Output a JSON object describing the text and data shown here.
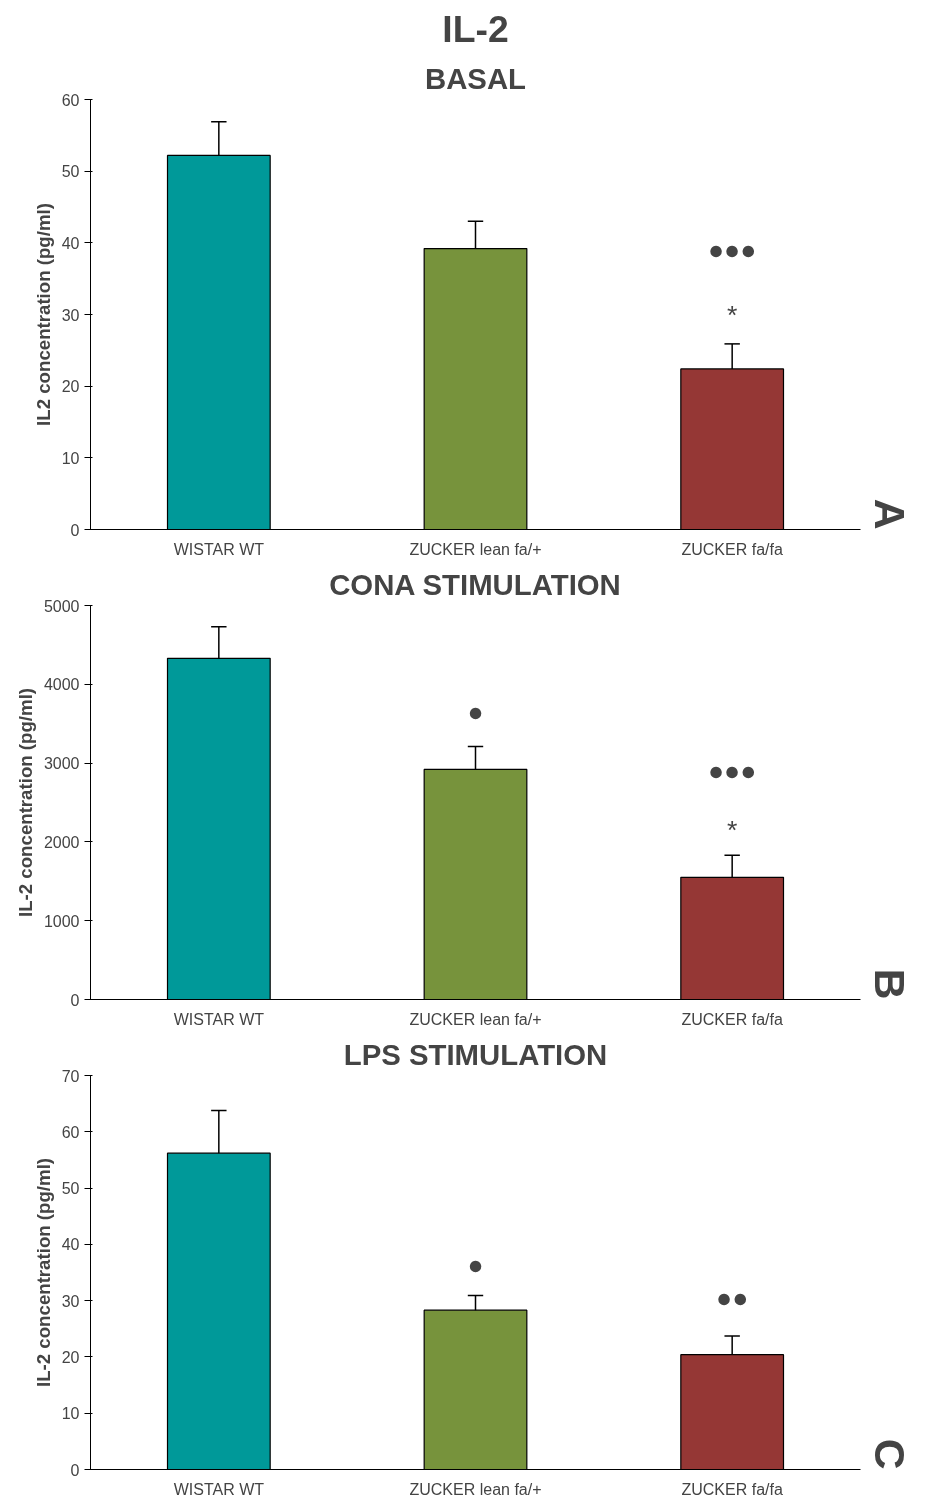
{
  "chart_data": [
    {
      "type": "bar",
      "title": "IL-2",
      "subtitle": "BASAL",
      "ylabel": "IL2 concentration (pg/ml)",
      "categories": [
        "WISTAR WT",
        "ZUCKER lean fa/+",
        "ZUCKER fa/fa"
      ],
      "values": [
        52.2,
        39.2,
        22.4
      ],
      "colors": [
        "#009999",
        "#77933c",
        "#953735"
      ],
      "errors": [
        [
          52.2,
          56.9
        ],
        [
          39.2,
          43
        ],
        [
          22.4,
          25.9
        ]
      ],
      "ylim": [
        0,
        60
      ],
      "yticks": [
        0,
        10,
        20,
        30,
        40,
        50,
        60
      ],
      "grid": false,
      "annotations": [
        "A",
        "●●●",
        "*"
      ]
    },
    {
      "type": "bar",
      "title": "CONA STIMULATION",
      "ylabel": "IL-2 concentration (pg/ml)",
      "categories": [
        "WISTAR WT",
        "ZUCKER lean fa/+",
        "ZUCKER fa/fa"
      ],
      "values": [
        4330,
        2920,
        1550
      ],
      "colors": [
        "#009999",
        "#77933c",
        "#953735"
      ],
      "errors": [
        [
          4330,
          4730
        ],
        [
          2920,
          3210
        ],
        [
          1550,
          1830
        ]
      ],
      "ylim": [
        0,
        5000
      ],
      "yticks": [
        0,
        1000,
        2000,
        3000,
        4000,
        5000
      ],
      "grid": false,
      "annotations": [
        "B",
        "●",
        "●●●",
        "*"
      ]
    },
    {
      "type": "bar",
      "title": "LPS STIMULATION",
      "ylabel": "IL-2 concentration (pg/ml)",
      "categories": [
        "WISTAR WT",
        "ZUCKER lean fa/+",
        "ZUCKER fa/fa"
      ],
      "values": [
        56.2,
        28.3,
        20.4
      ],
      "colors": [
        "#009999",
        "#77933c",
        "#953735"
      ],
      "errors": [
        [
          56.2,
          63.8
        ],
        [
          28.3,
          30.9
        ],
        [
          20.4,
          23.7
        ]
      ],
      "ylim": [
        0,
        70
      ],
      "yticks": [
        0,
        10,
        20,
        30,
        40,
        50,
        60,
        70
      ],
      "grid": false,
      "annotations": [
        "C",
        "●",
        "●●"
      ]
    }
  ]
}
